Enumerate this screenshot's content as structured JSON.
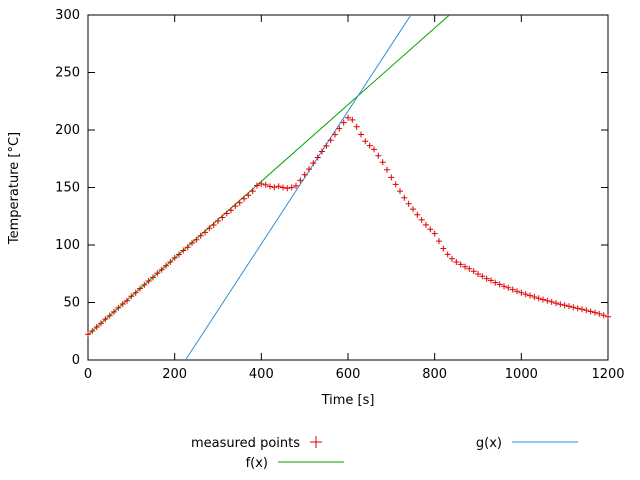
{
  "chart_data": {
    "type": "scatter",
    "title": "",
    "xlabel": "Time [s]",
    "ylabel": "Temperature [°C]",
    "xlim": [
      0,
      1200
    ],
    "ylim": [
      0,
      300
    ],
    "xticks": [
      0,
      200,
      400,
      600,
      800,
      1000,
      1200
    ],
    "yticks": [
      0,
      50,
      100,
      150,
      200,
      250,
      300
    ],
    "grid": false,
    "legend_position": "below-plot",
    "frame_color": "#000000",
    "series": [
      {
        "name": "measured points",
        "type": "points",
        "marker": "+",
        "color": "#e00000",
        "points": [
          [
            0,
            22.4
          ],
          [
            10,
            25.2
          ],
          [
            20,
            28.7
          ],
          [
            30,
            31.9
          ],
          [
            40,
            35.6
          ],
          [
            50,
            38.4
          ],
          [
            60,
            41.8
          ],
          [
            70,
            45.3
          ],
          [
            80,
            48.7
          ],
          [
            90,
            51.6
          ],
          [
            100,
            55.5
          ],
          [
            110,
            58.4
          ],
          [
            120,
            62.1
          ],
          [
            130,
            65.3
          ],
          [
            140,
            68.7
          ],
          [
            150,
            71.8
          ],
          [
            160,
            75.4
          ],
          [
            170,
            78.5
          ],
          [
            180,
            81.9
          ],
          [
            190,
            85.2
          ],
          [
            200,
            88.8
          ],
          [
            210,
            91.7
          ],
          [
            220,
            95.2
          ],
          [
            230,
            98.1
          ],
          [
            240,
            101.7
          ],
          [
            250,
            104.6
          ],
          [
            260,
            108.1
          ],
          [
            270,
            111.0
          ],
          [
            280,
            114.5
          ],
          [
            290,
            117.4
          ],
          [
            300,
            120.9
          ],
          [
            310,
            123.9
          ],
          [
            320,
            127.4
          ],
          [
            330,
            130.3
          ],
          [
            340,
            133.8
          ],
          [
            350,
            136.8
          ],
          [
            360,
            140.3
          ],
          [
            370,
            143.2
          ],
          [
            380,
            146.9
          ],
          [
            390,
            151.7
          ],
          [
            400,
            153.1
          ],
          [
            410,
            152.3
          ],
          [
            420,
            151.0
          ],
          [
            430,
            150.2
          ],
          [
            440,
            151.1
          ],
          [
            450,
            150.0
          ],
          [
            460,
            149.3
          ],
          [
            470,
            150.1
          ],
          [
            480,
            151.4
          ],
          [
            490,
            156.2
          ],
          [
            500,
            161.1
          ],
          [
            510,
            166.0
          ],
          [
            520,
            171.2
          ],
          [
            530,
            176.1
          ],
          [
            540,
            181.3
          ],
          [
            550,
            186.2
          ],
          [
            560,
            191.1
          ],
          [
            570,
            196.0
          ],
          [
            580,
            201.2
          ],
          [
            590,
            206.4
          ],
          [
            600,
            210.6
          ],
          [
            610,
            208.8
          ],
          [
            620,
            202.9
          ],
          [
            630,
            196.1
          ],
          [
            640,
            190.2
          ],
          [
            650,
            186.4
          ],
          [
            660,
            183.1
          ],
          [
            670,
            177.6
          ],
          [
            680,
            171.9
          ],
          [
            690,
            165.5
          ],
          [
            700,
            158.8
          ],
          [
            710,
            152.7
          ],
          [
            720,
            146.9
          ],
          [
            730,
            141.1
          ],
          [
            740,
            135.9
          ],
          [
            750,
            131.2
          ],
          [
            760,
            126.3
          ],
          [
            770,
            121.8
          ],
          [
            780,
            117.5
          ],
          [
            790,
            113.7
          ],
          [
            800,
            109.9
          ],
          [
            810,
            103.4
          ],
          [
            820,
            96.9
          ],
          [
            830,
            91.8
          ],
          [
            840,
            88.1
          ],
          [
            850,
            85.2
          ],
          [
            860,
            83.1
          ],
          [
            870,
            81.1
          ],
          [
            880,
            79.3
          ],
          [
            890,
            77.1
          ],
          [
            900,
            74.8
          ],
          [
            910,
            72.9
          ],
          [
            920,
            70.8
          ],
          [
            930,
            69.2
          ],
          [
            940,
            67.3
          ],
          [
            950,
            65.7
          ],
          [
            960,
            64.1
          ],
          [
            970,
            62.8
          ],
          [
            980,
            61.2
          ],
          [
            990,
            59.8
          ],
          [
            1000,
            58.5
          ],
          [
            1010,
            57.2
          ],
          [
            1020,
            56.0
          ],
          [
            1030,
            54.8
          ],
          [
            1040,
            53.7
          ],
          [
            1050,
            52.6
          ],
          [
            1060,
            51.5
          ],
          [
            1070,
            50.5
          ],
          [
            1080,
            49.5
          ],
          [
            1090,
            48.5
          ],
          [
            1100,
            47.6
          ],
          [
            1110,
            46.7
          ],
          [
            1120,
            45.8
          ],
          [
            1130,
            44.9
          ],
          [
            1140,
            44.1
          ],
          [
            1150,
            43.2
          ],
          [
            1160,
            42.2
          ],
          [
            1170,
            41.2
          ],
          [
            1180,
            40.1
          ],
          [
            1190,
            38.9
          ],
          [
            1200,
            37.6
          ]
        ]
      },
      {
        "name": "f(x)",
        "type": "line",
        "color": "#00a000",
        "slope": 0.3333,
        "intercept": 22,
        "segment": [
          [
            0,
            22
          ],
          [
            834,
            300
          ]
        ]
      },
      {
        "name": "g(x)",
        "type": "line",
        "color": "#2d8fd5",
        "slope": 0.5769,
        "intercept": -129.8,
        "segment": [
          [
            225,
            0
          ],
          [
            745,
            300
          ]
        ]
      }
    ]
  }
}
